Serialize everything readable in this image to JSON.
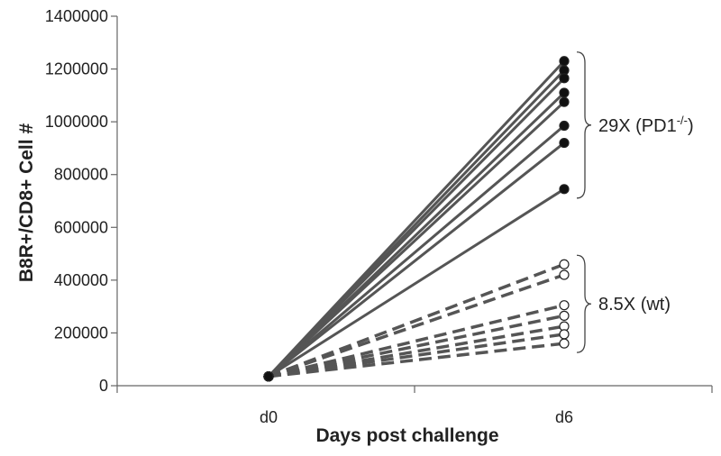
{
  "chart_data": {
    "type": "line",
    "title": "",
    "xlabel": "Days post challenge",
    "ylabel": "B8R+/CD8+ Cell #",
    "categories": [
      "d0",
      "d6"
    ],
    "ylim": [
      0,
      1400000
    ],
    "yticks": [
      "0",
      "200000",
      "400000",
      "600000",
      "800000",
      "1000000",
      "1200000",
      "1400000"
    ],
    "grid": false,
    "legend": "none",
    "colors": {
      "line": "#555555",
      "marker_filled": "#111111",
      "marker_open": "#ffffff"
    },
    "groups": [
      {
        "label_main": "29X (PD1",
        "label_sup": "-/-",
        "label_end": ")",
        "style": "solid",
        "marker": "filled-circle",
        "series": [
          {
            "values": [
              35000,
              1230000
            ]
          },
          {
            "values": [
              35000,
              1195000
            ]
          },
          {
            "values": [
              35000,
              1165000
            ]
          },
          {
            "values": [
              35000,
              1110000
            ]
          },
          {
            "values": [
              35000,
              1075000
            ]
          },
          {
            "values": [
              35000,
              985000
            ]
          },
          {
            "values": [
              35000,
              920000
            ]
          },
          {
            "values": [
              35000,
              745000
            ]
          }
        ]
      },
      {
        "label_main": "8.5X (wt)",
        "label_sup": "",
        "label_end": "",
        "style": "dashed",
        "marker": "open-circle",
        "series": [
          {
            "values": [
              35000,
              460000
            ]
          },
          {
            "values": [
              35000,
              420000
            ]
          },
          {
            "values": [
              35000,
              305000
            ]
          },
          {
            "values": [
              35000,
              265000
            ]
          },
          {
            "values": [
              35000,
              225000
            ]
          },
          {
            "values": [
              35000,
              195000
            ]
          },
          {
            "values": [
              35000,
              160000
            ]
          }
        ]
      }
    ]
  }
}
